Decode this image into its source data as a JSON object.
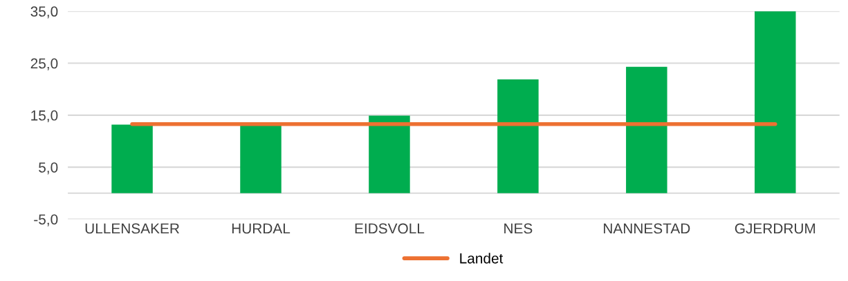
{
  "chart_data": {
    "type": "bar",
    "categories": [
      "ULLENSAKER",
      "HURDAL",
      "EIDSVOLL",
      "NES",
      "NANNESTAD",
      "GJERDRUM"
    ],
    "series": [
      {
        "color": "#00ad4f",
        "values": [
          13.2,
          13.2,
          14.9,
          21.9,
          24.3,
          35.0
        ]
      },
      {
        "type": "line",
        "name": "Landet",
        "color": "#ed7132",
        "values": [
          13.3,
          13.3,
          13.3,
          13.3,
          13.3,
          13.3
        ]
      }
    ],
    "ylim": [
      -5,
      35
    ],
    "yticks": [
      {
        "value": -5,
        "label": "-5,0"
      },
      {
        "value": 5,
        "label": "5,0"
      },
      {
        "value": 15,
        "label": "15,0"
      },
      {
        "value": 25,
        "label": "25,0"
      },
      {
        "value": 35,
        "label": "35,0"
      }
    ],
    "grid": "y",
    "legend": "bottom",
    "marker": "none"
  }
}
